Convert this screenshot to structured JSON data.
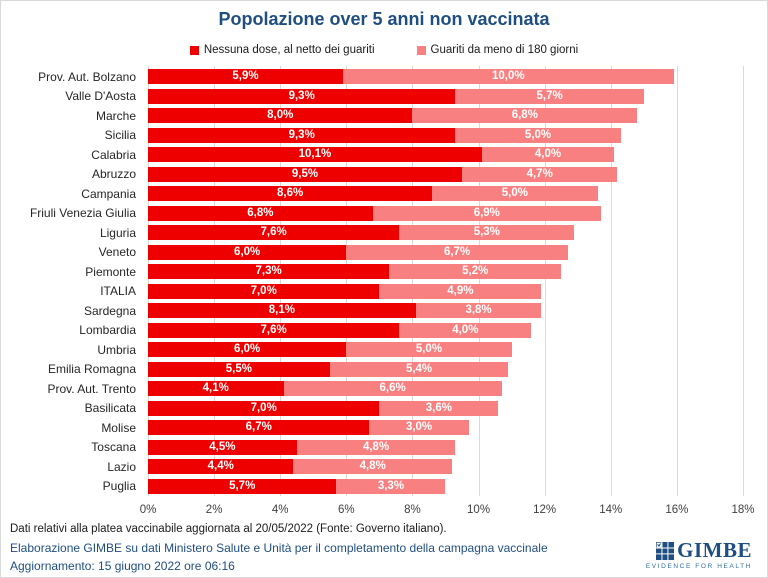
{
  "title": "Popolazione over 5 anni non vaccinata",
  "legend": {
    "items": [
      {
        "label": "Nessuna dose, al netto dei guariti",
        "color": "#EE0000"
      },
      {
        "label": "Guariti da meno di 180 giorni",
        "color": "#F98080"
      }
    ]
  },
  "chart_data": {
    "type": "bar",
    "orientation": "horizontal",
    "stacked": true,
    "title": "Popolazione over 5 anni non vaccinata",
    "categories": [
      "Prov. Aut. Bolzano",
      "Valle D'Aosta",
      "Marche",
      "Sicilia",
      "Calabria",
      "Abruzzo",
      "Campania",
      "Friuli Venezia Giulia",
      "Liguria",
      "Veneto",
      "Piemonte",
      "ITALIA",
      "Sardegna",
      "Lombardia",
      "Umbria",
      "Emilia Romagna",
      "Prov. Aut. Trento",
      "Basilicata",
      "Molise",
      "Toscana",
      "Lazio",
      "Puglia"
    ],
    "series": [
      {
        "name": "Nessuna dose, al netto dei guariti",
        "color": "#EE0000",
        "values": [
          5.9,
          9.3,
          8.0,
          9.3,
          10.1,
          9.5,
          8.6,
          6.8,
          7.6,
          6.0,
          7.3,
          7.0,
          8.1,
          7.6,
          6.0,
          5.5,
          4.1,
          7.0,
          6.7,
          4.5,
          4.4,
          5.7
        ]
      },
      {
        "name": "Guariti da meno di 180 giorni",
        "color": "#F98080",
        "values": [
          10.0,
          5.7,
          6.8,
          5.0,
          4.0,
          4.7,
          5.0,
          6.9,
          5.3,
          6.7,
          5.2,
          4.9,
          3.8,
          4.0,
          5.0,
          5.4,
          6.6,
          3.6,
          3.0,
          4.8,
          4.8,
          3.3
        ]
      }
    ],
    "xlabel": "",
    "ylabel": "",
    "xlim": [
      0,
      18
    ],
    "x_ticks": [
      "0%",
      "2%",
      "4%",
      "6%",
      "8%",
      "10%",
      "12%",
      "14%",
      "16%",
      "18%"
    ],
    "grid": true,
    "legend_position": "top",
    "value_label_format": "italian-decimal-percent"
  },
  "footer": {
    "line1": "Dati relativi alla platea vaccinabile aggiornata al 20/05/2022 (Fonte: Governo italiano).",
    "line2": "Elaborazione GIMBE su dati Ministero Salute e Unità per il completamento della campagna vaccinale",
    "line3": "Aggiornamento: 15 giugno 2022 ore 06:16"
  },
  "logo": {
    "wordmark": "GIMBE",
    "tagline": "EVIDENCE FOR HEALTH",
    "color": "#1F4E80"
  },
  "colors": {
    "title_blue": "#1F4E80",
    "footer_blue": "#1F4E80",
    "series_red": "#EE0000",
    "series_pink": "#F98080",
    "gridline": "#D9D9D9"
  }
}
